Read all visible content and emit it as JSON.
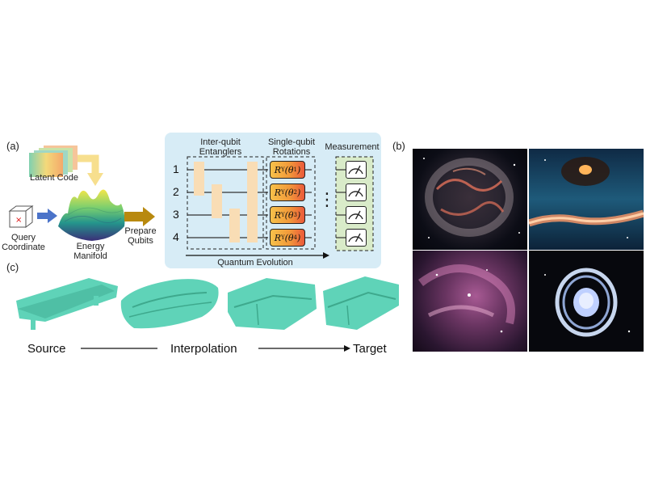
{
  "panel_labels": {
    "a": "(a)",
    "b": "(b)",
    "c": "(c)"
  },
  "pipeline": {
    "latent_code": "Latent Code",
    "query_coordinate_line1": "Query",
    "query_coordinate_line2": "Coordinate",
    "energy_manifold_line1": "Energy",
    "energy_manifold_line2": "Manifold",
    "prepare_qubits_line1": "Prepare",
    "prepare_qubits_line2": "Qubits"
  },
  "circuit": {
    "entanglers_title_line1": "Inter-qubit",
    "entanglers_title_line2": "Entanglers",
    "rotations_title_line1": "Single-qubit",
    "rotations_title_line2": "Rotations",
    "measurement_title": "Measurement",
    "evolution_label": "Quantum Evolution",
    "ellipsis": "⋮",
    "qubits": [
      {
        "index": "1",
        "gate_op": "R",
        "gate_sub": "Y",
        "gate_arg": "(θ",
        "gate_idx": "1",
        "gate_close": ")"
      },
      {
        "index": "2",
        "gate_op": "R",
        "gate_sub": "Y",
        "gate_arg": "(θ",
        "gate_idx": "2",
        "gate_close": ")"
      },
      {
        "index": "3",
        "gate_op": "R",
        "gate_sub": "Y",
        "gate_arg": "(θ",
        "gate_idx": "3",
        "gate_close": ")"
      },
      {
        "index": "4",
        "gate_op": "R",
        "gate_sub": "Y",
        "gate_arg": "(θ",
        "gate_idx": "4",
        "gate_close": ")"
      }
    ]
  },
  "interpolation": {
    "source": "Source",
    "middle": "Interpolation",
    "target": "Target"
  },
  "colors": {
    "circuit_bg": "#d7ecf6",
    "entangler_fill": "#f9ddb5",
    "measurement_bg": "#d9ebc9",
    "shape_teal": "#5fd3b8",
    "arrow_blue": "#4b73c9",
    "arrow_gold": "#b8890f"
  },
  "icons": [
    "latent-code-icon",
    "query-cube-icon",
    "energy-manifold-icon",
    "meter-icon"
  ]
}
